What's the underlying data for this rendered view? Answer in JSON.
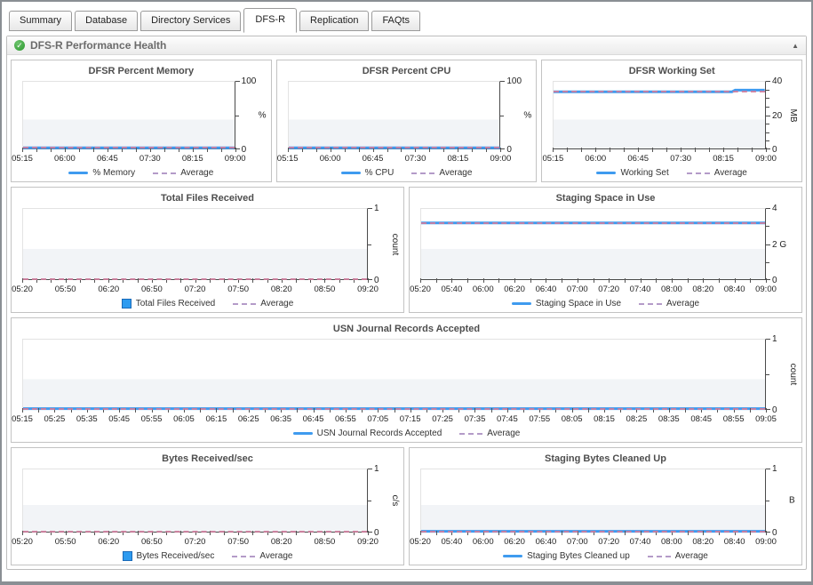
{
  "tabs": [
    {
      "label": "Summary",
      "active": false
    },
    {
      "label": "Database",
      "active": false
    },
    {
      "label": "Directory Services",
      "active": false
    },
    {
      "label": "DFS-R",
      "active": true
    },
    {
      "label": "Replication",
      "active": false
    },
    {
      "label": "FAQts",
      "active": false
    }
  ],
  "section": {
    "title": "DFS-R Performance Health",
    "status_icon": "green-check-circle",
    "collapse_icon": "up-triangle"
  },
  "colors": {
    "series_line": "#3f9bef",
    "series_bar_swatch": "#2d9bf0",
    "average_dash_plot": "#cf7d9e",
    "average_dash_legend": "#b49bc8",
    "status_green": "#2c9a2f",
    "axis": "#4a4a4a"
  },
  "chart_data": [
    {
      "type": "line",
      "title": "DFSR Percent Memory",
      "ylabel_unit": "%",
      "unit_vertical": false,
      "ylim": [
        0,
        100
      ],
      "yticks": [
        {
          "v": 0,
          "label": "0"
        },
        {
          "v": 50,
          "label": ""
        },
        {
          "v": 100,
          "label": "100"
        }
      ],
      "x_ticklabels": [
        "05:15",
        "06:00",
        "06:45",
        "07:30",
        "08:15",
        "09:00"
      ],
      "x_minor_subdivisions": 3,
      "series": [
        {
          "name": "% Memory",
          "points": [
            [
              0,
              1
            ],
            [
              1,
              1
            ]
          ]
        }
      ],
      "average": 1,
      "legend": [
        {
          "swatch": "line",
          "label": "% Memory"
        },
        {
          "swatch": "dash",
          "label": "Average"
        }
      ]
    },
    {
      "type": "line",
      "title": "DFSR Percent CPU",
      "ylabel_unit": "%",
      "unit_vertical": false,
      "ylim": [
        0,
        100
      ],
      "yticks": [
        {
          "v": 0,
          "label": "0"
        },
        {
          "v": 50,
          "label": ""
        },
        {
          "v": 100,
          "label": "100"
        }
      ],
      "x_ticklabels": [
        "05:15",
        "06:00",
        "06:45",
        "07:30",
        "08:15",
        "09:00"
      ],
      "x_minor_subdivisions": 3,
      "series": [
        {
          "name": "% CPU",
          "points": [
            [
              0,
              1
            ],
            [
              1,
              1
            ]
          ]
        }
      ],
      "average": 1,
      "legend": [
        {
          "swatch": "line",
          "label": "% CPU"
        },
        {
          "swatch": "dash",
          "label": "Average"
        }
      ]
    },
    {
      "type": "line",
      "title": "DFSR Working Set",
      "ylabel_unit": "MB",
      "unit_vertical": true,
      "ylim": [
        0,
        40
      ],
      "yticks": [
        {
          "v": 0,
          "label": "0"
        },
        {
          "v": 5,
          "label": ""
        },
        {
          "v": 10,
          "label": ""
        },
        {
          "v": 15,
          "label": ""
        },
        {
          "v": 20,
          "label": "20"
        },
        {
          "v": 25,
          "label": ""
        },
        {
          "v": 30,
          "label": ""
        },
        {
          "v": 35,
          "label": ""
        },
        {
          "v": 40,
          "label": "40"
        }
      ],
      "x_ticklabels": [
        "05:15",
        "06:00",
        "06:45",
        "07:30",
        "08:15",
        "09:00"
      ],
      "x_minor_subdivisions": 3,
      "series": [
        {
          "name": "Working Set",
          "points": [
            [
              0,
              34
            ],
            [
              0.845,
              34
            ],
            [
              0.86,
              35
            ],
            [
              1,
              35
            ]
          ]
        }
      ],
      "average": 34.1,
      "legend": [
        {
          "swatch": "line",
          "label": "Working Set"
        },
        {
          "swatch": "dash",
          "label": "Average"
        }
      ]
    },
    {
      "type": "bar",
      "title": "Total Files Received",
      "ylabel_unit": "count",
      "unit_vertical": true,
      "ylim": [
        0,
        1
      ],
      "yticks": [
        {
          "v": 0,
          "label": "0"
        },
        {
          "v": 0.5,
          "label": ""
        },
        {
          "v": 1,
          "label": "1"
        }
      ],
      "x_ticklabels": [
        "05:20",
        "05:50",
        "06:20",
        "06:50",
        "07:20",
        "07:50",
        "08:20",
        "08:50",
        "09:20"
      ],
      "x_minor_subdivisions": 3,
      "series": [
        {
          "name": "Total Files Received",
          "points": []
        }
      ],
      "average": 0,
      "legend": [
        {
          "swatch": "square",
          "label": "Total Files Received"
        },
        {
          "swatch": "dash",
          "label": "Average"
        }
      ]
    },
    {
      "type": "line",
      "title": "Staging Space in Use",
      "ylabel_unit": "",
      "unit_vertical": false,
      "ylim": [
        0,
        4
      ],
      "yticks": [
        {
          "v": 0,
          "label": "0"
        },
        {
          "v": 1,
          "label": ""
        },
        {
          "v": 2,
          "label": "2 G"
        },
        {
          "v": 3,
          "label": ""
        },
        {
          "v": 4,
          "label": "4"
        }
      ],
      "x_ticklabels": [
        "05:20",
        "05:40",
        "06:00",
        "06:20",
        "06:40",
        "07:00",
        "07:20",
        "07:40",
        "08:00",
        "08:20",
        "08:40",
        "09:00"
      ],
      "x_minor_subdivisions": 2,
      "series": [
        {
          "name": "Staging Space in Use",
          "points": [
            [
              0,
              3.2
            ],
            [
              1,
              3.2
            ]
          ]
        }
      ],
      "average": 3.2,
      "legend": [
        {
          "swatch": "line",
          "label": "Staging Space in Use"
        },
        {
          "swatch": "dash",
          "label": "Average"
        }
      ]
    },
    {
      "type": "line",
      "title": "USN Journal Records Accepted",
      "ylabel_unit": "count",
      "unit_vertical": true,
      "ylim": [
        0,
        1
      ],
      "yticks": [
        {
          "v": 0,
          "label": "0"
        },
        {
          "v": 0.5,
          "label": ""
        },
        {
          "v": 1,
          "label": "1"
        }
      ],
      "x_ticklabels": [
        "05:15",
        "05:25",
        "05:35",
        "05:45",
        "05:55",
        "06:05",
        "06:15",
        "06:25",
        "06:35",
        "06:45",
        "06:55",
        "07:05",
        "07:15",
        "07:25",
        "07:35",
        "07:45",
        "07:55",
        "08:05",
        "08:15",
        "08:25",
        "08:35",
        "08:45",
        "08:55",
        "09:05"
      ],
      "x_minor_subdivisions": 2,
      "series": [
        {
          "name": "USN Journal Records Accepted",
          "points": [
            [
              0,
              0.005
            ],
            [
              1,
              0.005
            ]
          ]
        }
      ],
      "average": 0,
      "legend": [
        {
          "swatch": "line",
          "label": "USN Journal Records Accepted"
        },
        {
          "swatch": "dash",
          "label": "Average"
        }
      ]
    },
    {
      "type": "bar",
      "title": "Bytes Received/sec",
      "ylabel_unit": "c/s",
      "unit_vertical": true,
      "ylim": [
        0,
        1
      ],
      "yticks": [
        {
          "v": 0,
          "label": "0"
        },
        {
          "v": 0.5,
          "label": ""
        },
        {
          "v": 1,
          "label": "1"
        }
      ],
      "x_ticklabels": [
        "05:20",
        "05:50",
        "06:20",
        "06:50",
        "07:20",
        "07:50",
        "08:20",
        "08:50",
        "09:20"
      ],
      "x_minor_subdivisions": 3,
      "series": [
        {
          "name": "Bytes Received/sec",
          "points": []
        }
      ],
      "average": 0,
      "legend": [
        {
          "swatch": "square",
          "label": "Bytes Received/sec"
        },
        {
          "swatch": "dash",
          "label": "Average"
        }
      ]
    },
    {
      "type": "line",
      "title": "Staging Bytes Cleaned Up",
      "ylabel_unit": "B",
      "unit_vertical": false,
      "ylim": [
        0,
        1
      ],
      "yticks": [
        {
          "v": 0,
          "label": "0"
        },
        {
          "v": 0.5,
          "label": ""
        },
        {
          "v": 1,
          "label": "1"
        }
      ],
      "x_ticklabels": [
        "05:20",
        "05:40",
        "06:00",
        "06:20",
        "06:40",
        "07:00",
        "07:20",
        "07:40",
        "08:00",
        "08:20",
        "08:40",
        "09:00"
      ],
      "x_minor_subdivisions": 2,
      "series": [
        {
          "name": "Staging Bytes Cleaned up",
          "points": [
            [
              0,
              0.005
            ],
            [
              1,
              0.005
            ]
          ]
        }
      ],
      "average": 0,
      "legend": [
        {
          "swatch": "line",
          "label": "Staging Bytes Cleaned up"
        },
        {
          "swatch": "dash",
          "label": "Average"
        }
      ]
    }
  ]
}
